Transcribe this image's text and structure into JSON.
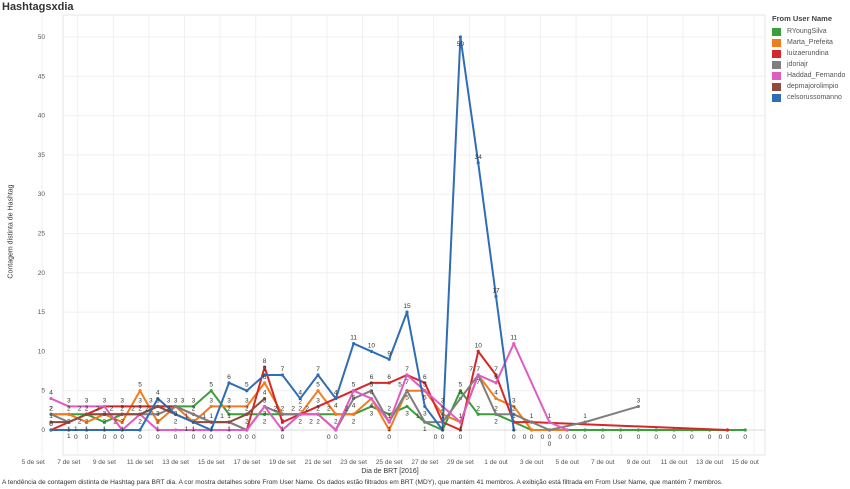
{
  "title": "Hashtagsxdia",
  "footer": "A tendência de contagem distinta de Hashtag para BRT dia.  A cor mostra detalhes sobre From User Name. Os dados estão filtrados em BRT (MDY), que mantém 41 membros. A exibição está filtrada em From User Name, que mantém 7 membros.",
  "legend": {
    "title": "From User Name",
    "items": [
      {
        "label": "RYoungSilva",
        "color": "#3a9e3a"
      },
      {
        "label": "Marta_Prefeita",
        "color": "#f07c1e"
      },
      {
        "label": "luizaerundina",
        "color": "#d62728"
      },
      {
        "label": "jdoriajr",
        "color": "#7f7f7f"
      },
      {
        "label": "Haddad_Fernando",
        "color": "#e05cc2"
      },
      {
        "label": "depmajorolimpio",
        "color": "#8c4b3c"
      },
      {
        "label": "celsorussomanno",
        "color": "#2f6db5"
      }
    ]
  },
  "chart_data": {
    "type": "line",
    "title": "Hashtagsxdia",
    "xlabel": "Dia de BRT [2016]",
    "ylabel": "Contagem distinta de Hashtag",
    "ylim": [
      -3,
      53
    ],
    "yticks": [
      0,
      5,
      10,
      15,
      20,
      25,
      30,
      35,
      40,
      45,
      50
    ],
    "xticks": [
      "5 de set",
      "7 de set",
      "9 de set",
      "11 de set",
      "13 de set",
      "15 de set",
      "17 de set",
      "19 de set",
      "21 de set",
      "23 de set",
      "25 de set",
      "27 de set",
      "29 de set",
      "1 de out",
      "3 de out",
      "5 de out",
      "7 de out",
      "9 de out",
      "11 de out",
      "13 de out",
      "15 de out"
    ],
    "x_start": "6 de set",
    "grid": true,
    "legend_position": "right",
    "series": [
      {
        "name": "RYoungSilva",
        "values": [
          2,
          2,
          2,
          1,
          2,
          2,
          3,
          3,
          3,
          5,
          2,
          2,
          2,
          2,
          2,
          2,
          2,
          2,
          3,
          2,
          3,
          1,
          0,
          5,
          2,
          2,
          1,
          0,
          0,
          0,
          0,
          0,
          0,
          0,
          0,
          0,
          0,
          0,
          0,
          0
        ]
      },
      {
        "name": "Marta_Prefeita",
        "values": [
          2,
          2,
          1,
          2,
          1,
          5,
          1,
          3,
          1,
          3,
          3,
          3,
          6,
          2,
          2,
          5,
          2,
          2,
          4,
          0,
          5,
          5,
          2,
          1,
          7,
          4,
          3,
          0,
          0,
          0,
          null,
          null,
          null,
          null,
          null,
          null,
          null,
          null,
          null,
          null
        ]
      },
      {
        "name": "luizaerundina",
        "values": [
          0,
          1,
          2,
          3,
          3,
          3,
          3,
          3,
          2,
          1,
          1,
          0,
          8,
          1,
          2,
          3,
          4,
          5,
          6,
          6,
          7,
          6,
          1,
          0,
          10,
          7,
          1,
          1,
          null,
          null,
          null,
          null,
          null,
          null,
          null,
          null,
          null,
          null,
          0,
          null
        ]
      },
      {
        "name": "jdoriajr",
        "values": [
          2,
          1,
          2,
          2,
          2,
          2,
          2,
          3,
          2,
          1,
          1,
          0,
          3,
          2,
          2,
          2,
          0,
          4,
          5,
          1,
          5,
          1,
          1,
          4,
          7,
          2,
          2,
          null,
          0,
          null,
          1,
          null,
          null,
          3,
          null,
          null,
          null,
          null,
          null,
          null
        ]
      },
      {
        "name": "Haddad_Fernando",
        "values": [
          4,
          3,
          3,
          3,
          0,
          2,
          0,
          0,
          0,
          0,
          0,
          0,
          3,
          0,
          2,
          2,
          0,
          5,
          4,
          1,
          7,
          5,
          3,
          1,
          7,
          6,
          11,
          null,
          1,
          0,
          null,
          null,
          null,
          null,
          null,
          null,
          null,
          null,
          null,
          null
        ]
      },
      {
        "name": "depmajorolimpio",
        "values": [
          1,
          1,
          2,
          2,
          2,
          2,
          3,
          2,
          1,
          1,
          1,
          2,
          4,
          null,
          null,
          null,
          null,
          null,
          null,
          null,
          null,
          null,
          null,
          null,
          null,
          null,
          null,
          null,
          null,
          null,
          null,
          null,
          null,
          null,
          null,
          null,
          null,
          null,
          null,
          null
        ]
      },
      {
        "name": "celsorussomanno",
        "values": [
          0,
          0,
          0,
          0,
          0,
          0,
          4,
          2,
          1,
          0,
          6,
          5,
          7,
          7,
          4,
          7,
          4,
          11,
          10,
          9,
          15,
          3,
          0,
          50,
          34,
          17,
          0,
          null,
          null,
          null,
          null,
          null,
          null,
          null,
          null,
          null,
          null,
          null,
          null,
          null
        ]
      }
    ]
  }
}
